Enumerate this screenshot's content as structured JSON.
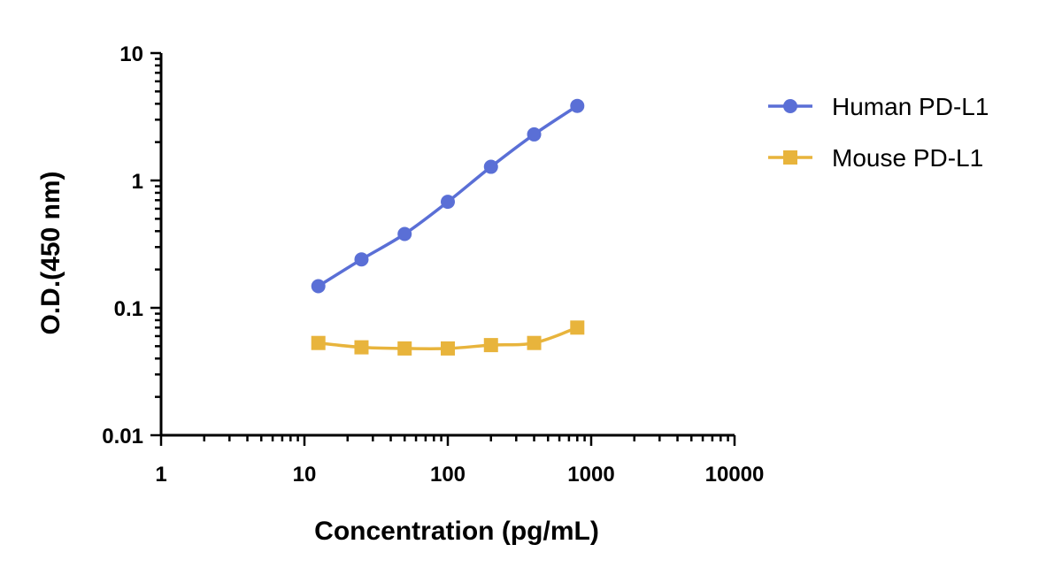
{
  "chart_data": {
    "type": "line",
    "xlabel": "Concentration (pg/mL)",
    "ylabel": "O.D.(450 nm)",
    "x_scale": "log",
    "y_scale": "log",
    "xlim": [
      1,
      10000
    ],
    "ylim": [
      0.01,
      10
    ],
    "x_ticks": [
      "1",
      "10",
      "100",
      "1000",
      "10000"
    ],
    "y_ticks": [
      "0.01",
      "0.1",
      "1",
      "10"
    ],
    "legend_position": "top-right",
    "grid": false,
    "series": [
      {
        "name": "Human PD-L1",
        "marker": "circle",
        "color": "#5a6fd6",
        "x": [
          12.5,
          25,
          50,
          100,
          200,
          400,
          800
        ],
        "y": [
          0.148,
          0.24,
          0.38,
          0.68,
          1.28,
          2.3,
          3.85
        ]
      },
      {
        "name": "Mouse PD-L1",
        "marker": "square",
        "color": "#e8b43c",
        "x": [
          12.5,
          25,
          50,
          100,
          200,
          400,
          800
        ],
        "y": [
          0.053,
          0.049,
          0.048,
          0.048,
          0.051,
          0.053,
          0.07
        ]
      }
    ]
  }
}
